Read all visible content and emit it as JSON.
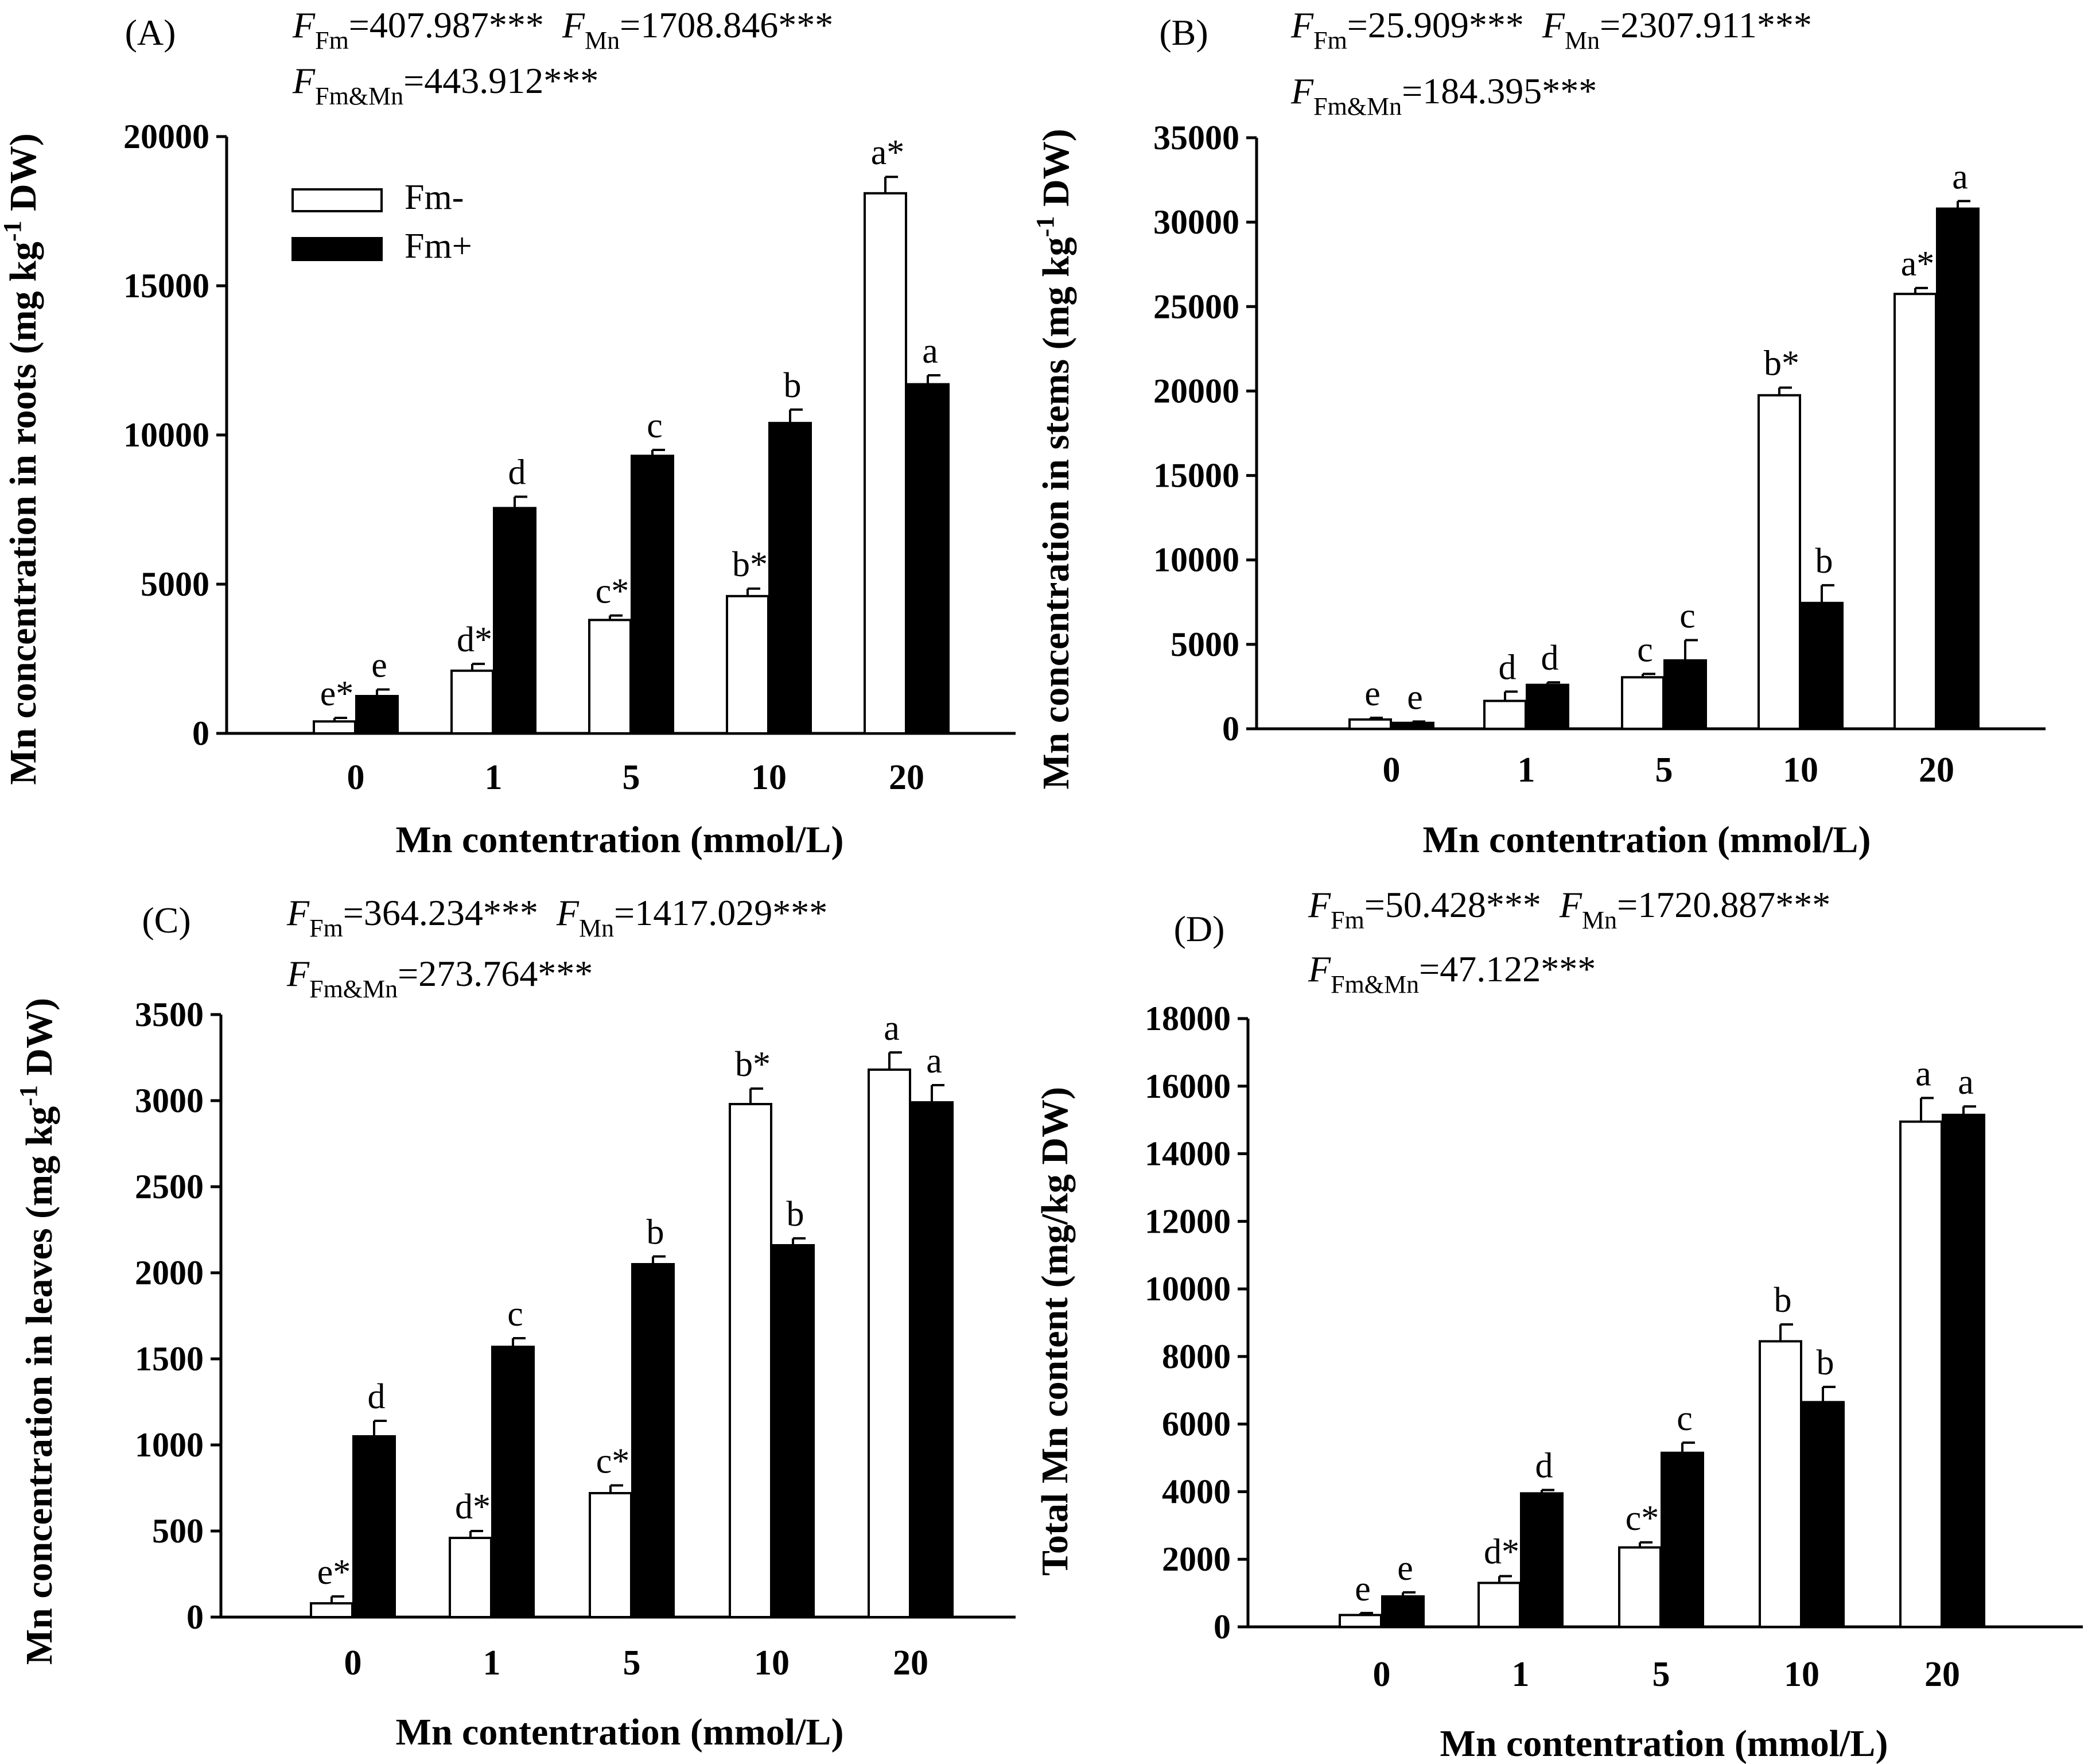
{
  "figure": {
    "legend": [
      {
        "label": "Fm-",
        "color": "#ffffff"
      },
      {
        "label": "Fm+",
        "color": "#000000"
      }
    ],
    "colors": {
      "fm_minus": "#ffffff",
      "fm_plus": "#000000",
      "axis": "#000000"
    }
  },
  "chart_data": [
    {
      "type": "bar",
      "panel": "(A)",
      "stats": [
        {
          "sym": "F",
          "sub": "Fm",
          "val": "=407.987***"
        },
        {
          "sym": "F",
          "sub": "Mn",
          "val": "=1708.846***"
        },
        {
          "sym": "F",
          "sub": "Fm&Mn",
          "val": "=443.912***"
        }
      ],
      "categories": [
        "0",
        "1",
        "5",
        "10",
        "20"
      ],
      "xlabel": "Mn contentration (mmol/L)",
      "ylabel_parts": [
        "Mn concentration in roots  (mg kg",
        "-1",
        " DW)"
      ],
      "ylim": [
        0,
        20000
      ],
      "yticks": [
        0,
        5000,
        10000,
        15000,
        20000
      ],
      "has_legend": true,
      "series": [
        {
          "name": "Fm-",
          "values": [
            400,
            2100,
            3800,
            4600,
            18100
          ],
          "errors": [
            120,
            230,
            150,
            250,
            550
          ],
          "letters": [
            "e*",
            "d*",
            "c*",
            "b*",
            "a*"
          ]
        },
        {
          "name": "Fm+",
          "values": [
            1250,
            7550,
            9300,
            10400,
            11700
          ],
          "errors": [
            220,
            380,
            200,
            450,
            300
          ],
          "letters": [
            "e",
            "d",
            "c",
            "b",
            "a"
          ]
        }
      ]
    },
    {
      "type": "bar",
      "panel": "(B)",
      "stats": [
        {
          "sym": "F",
          "sub": "Fm",
          "val": "=25.909***"
        },
        {
          "sym": "F",
          "sub": "Mn",
          "val": "=2307.911***"
        },
        {
          "sym": "F",
          "sub": "Fm&Mn",
          "val": "=184.395***"
        }
      ],
      "categories": [
        "0",
        "1",
        "5",
        "10",
        "20"
      ],
      "xlabel": "Mn contentration (mmol/L)",
      "ylabel_parts": [
        "Mn concentration in stems  (mg kg",
        "-1",
        " DW)"
      ],
      "ylim": [
        0,
        35000
      ],
      "yticks": [
        0,
        5000,
        10000,
        15000,
        20000,
        25000,
        30000,
        35000
      ],
      "has_legend": false,
      "series": [
        {
          "name": "Fm-",
          "values": [
            550,
            1650,
            3050,
            19750,
            25750
          ],
          "errors": [
            100,
            550,
            200,
            450,
            350
          ],
          "letters": [
            "e",
            "d",
            "c",
            "b*",
            "a*"
          ]
        },
        {
          "name": "Fm+",
          "values": [
            350,
            2600,
            4050,
            7450,
            30800
          ],
          "errors": [
            80,
            150,
            1200,
            1050,
            450
          ],
          "letters": [
            "e",
            "d",
            "c",
            "b",
            "a"
          ]
        }
      ]
    },
    {
      "type": "bar",
      "panel": "(C)",
      "stats": [
        {
          "sym": "F",
          "sub": "Fm",
          "val": "=364.234***"
        },
        {
          "sym": "F",
          "sub": "Mn",
          "val": "=1417.029***"
        },
        {
          "sym": "F",
          "sub": "Fm&Mn",
          "val": "=273.764***"
        }
      ],
      "categories": [
        "0",
        "1",
        "5",
        "10",
        "20"
      ],
      "xlabel": "Mn contentration (mmol/L)",
      "ylabel_parts": [
        "Mn concentration in leaves  (mg kg",
        "-1",
        " DW)"
      ],
      "ylim": [
        0,
        3500
      ],
      "yticks": [
        0,
        500,
        1000,
        1500,
        2000,
        2500,
        3000,
        3500
      ],
      "has_legend": false,
      "series": [
        {
          "name": "Fm-",
          "values": [
            80,
            460,
            720,
            2980,
            3180
          ],
          "errors": [
            40,
            40,
            45,
            90,
            100
          ],
          "letters": [
            "e*",
            "d*",
            "c*",
            "b*",
            "a"
          ]
        },
        {
          "name": "Fm+",
          "values": [
            1050,
            1570,
            2050,
            2160,
            2990
          ],
          "errors": [
            90,
            50,
            45,
            40,
            100
          ],
          "letters": [
            "d",
            "c",
            "b",
            "b",
            "a"
          ]
        }
      ]
    },
    {
      "type": "bar",
      "panel": "(D)",
      "stats": [
        {
          "sym": "F",
          "sub": "Fm",
          "val": "=50.428***"
        },
        {
          "sym": "F",
          "sub": "Mn",
          "val": "=1720.887***"
        },
        {
          "sym": "F",
          "sub": "Fm&Mn",
          "val": "=47.122***"
        }
      ],
      "categories": [
        "0",
        "1",
        "5",
        "10",
        "20"
      ],
      "xlabel": "Mn contentration (mmol/L)",
      "ylabel_parts": [
        "Total Mn content  (mg/kg DW)"
      ],
      "ylim": [
        0,
        18000
      ],
      "yticks": [
        0,
        2000,
        4000,
        6000,
        8000,
        10000,
        12000,
        14000,
        16000,
        18000
      ],
      "has_legend": false,
      "series": [
        {
          "name": "Fm-",
          "values": [
            350,
            1300,
            2350,
            8450,
            14950
          ],
          "errors": [
            60,
            200,
            150,
            500,
            700
          ],
          "letters": [
            "e",
            "d*",
            "c*",
            "b",
            "a"
          ]
        },
        {
          "name": "Fm+",
          "values": [
            900,
            3950,
            5150,
            6650,
            15150
          ],
          "errors": [
            120,
            100,
            300,
            450,
            250
          ],
          "letters": [
            "e",
            "d",
            "c",
            "b",
            "a"
          ]
        }
      ]
    }
  ]
}
